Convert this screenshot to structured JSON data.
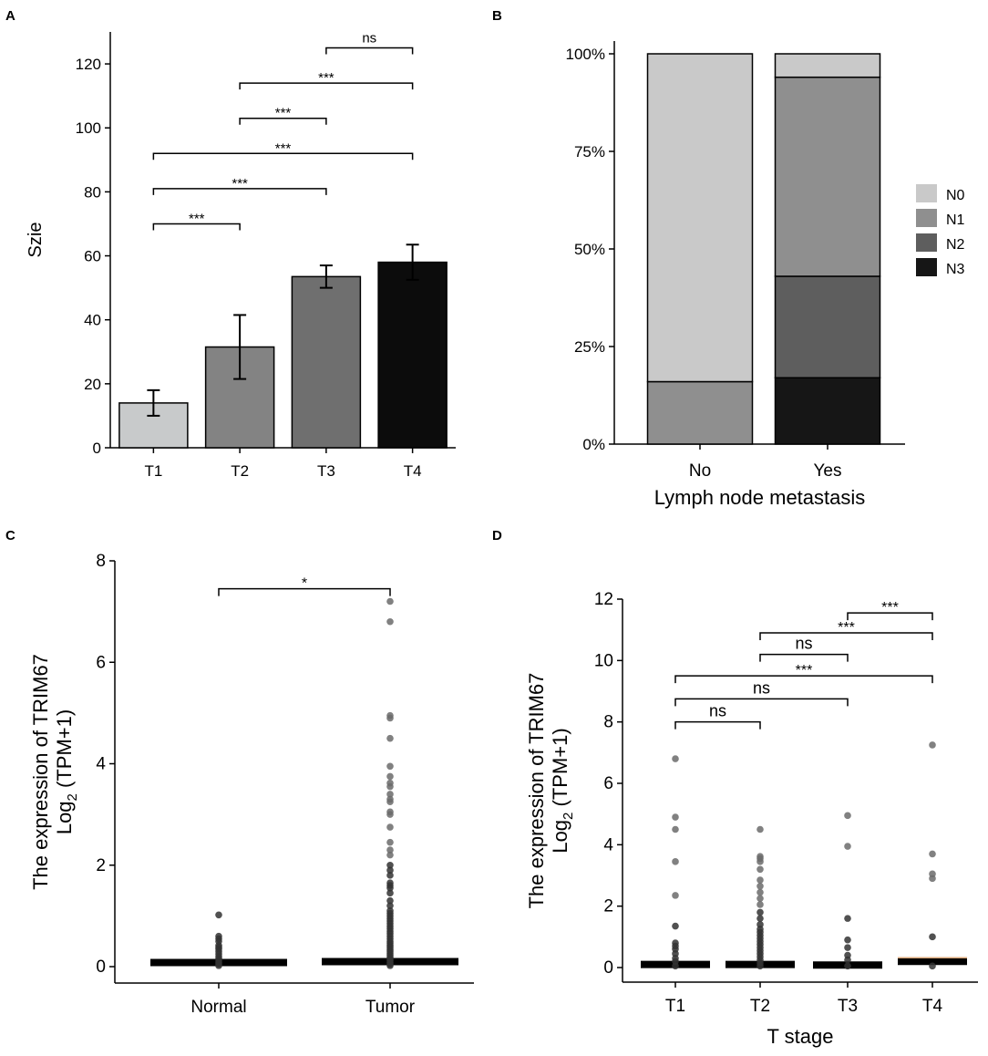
{
  "chart_data": [
    {
      "panel": "A",
      "type": "bar",
      "categories": [
        "T1",
        "T2",
        "T3",
        "T4"
      ],
      "values": [
        14,
        31.5,
        53.5,
        58
      ],
      "errors": [
        4,
        10,
        3.5,
        5.5
      ],
      "colors": [
        "#c8cacb",
        "#838383",
        "#6f6f6f",
        "#0c0c0c"
      ],
      "xlabel": "",
      "ylabel": "Szie",
      "ylim": [
        0,
        130
      ],
      "yticks": [
        0,
        20,
        40,
        60,
        80,
        100,
        120
      ],
      "comparisons": [
        {
          "from": "T1",
          "to": "T2",
          "label": "***",
          "y": 70
        },
        {
          "from": "T1",
          "to": "T3",
          "label": "***",
          "y": 81
        },
        {
          "from": "T1",
          "to": "T4",
          "label": "***",
          "y": 92
        },
        {
          "from": "T2",
          "to": "T3",
          "label": "***",
          "y": 103
        },
        {
          "from": "T2",
          "to": "T4",
          "label": "***",
          "y": 114
        },
        {
          "from": "T3",
          "to": "T4",
          "label": "ns",
          "y": 125
        }
      ]
    },
    {
      "panel": "B",
      "type": "bar",
      "stacked": true,
      "categories": [
        "No",
        "Yes"
      ],
      "xlabel": "Lymph node metastasis",
      "ylabel": "",
      "ylim": [
        0,
        100
      ],
      "ytick_labels": [
        "0%",
        "25%",
        "50%",
        "75%",
        "100%"
      ],
      "series": [
        {
          "name": "N3",
          "color": "#161616",
          "values": [
            0,
            17
          ]
        },
        {
          "name": "N2",
          "color": "#5e5e5e",
          "values": [
            0,
            26
          ]
        },
        {
          "name": "N1",
          "color": "#8f8f8f",
          "values": [
            16,
            51
          ]
        },
        {
          "name": "N0",
          "color": "#c9c9c9",
          "values": [
            84,
            6
          ]
        }
      ],
      "legend": [
        "N0",
        "N1",
        "N2",
        "N3"
      ],
      "legend_position": "right"
    },
    {
      "panel": "C",
      "type": "scatter",
      "categories": [
        "Normal",
        "Tumor"
      ],
      "xlabel": "",
      "ylabel": "The expression of TRIM67",
      "ylabel2": "Log",
      "ylabel2_sub": "2",
      "ylabel2_rest": " (TPM+1)",
      "ylim": [
        0,
        8
      ],
      "yticks": [
        0,
        2,
        4,
        6,
        8
      ],
      "medians": [
        0.08,
        0.1
      ],
      "points": [
        [
          0.02,
          0.05,
          0.08,
          0.12,
          0.16,
          0.2,
          0.25,
          0.3,
          0.35,
          0.38,
          0.42,
          0.5,
          0.55,
          0.6,
          1.02
        ],
        [
          0.02,
          0.05,
          0.08,
          0.12,
          0.15,
          0.18,
          0.22,
          0.26,
          0.3,
          0.34,
          0.38,
          0.42,
          0.46,
          0.5,
          0.55,
          0.6,
          0.65,
          0.7,
          0.75,
          0.8,
          0.85,
          0.9,
          0.95,
          1.0,
          1.05,
          1.1,
          1.2,
          1.3,
          1.45,
          1.55,
          1.6,
          1.65,
          1.8,
          1.9,
          2.0,
          2.2,
          2.3,
          2.45,
          2.75,
          3.0,
          3.05,
          3.25,
          3.3,
          3.4,
          3.55,
          3.62,
          3.75,
          3.95,
          4.5,
          4.9,
          4.95,
          6.8,
          7.2
        ]
      ],
      "comparisons": [
        {
          "from": "Normal",
          "to": "Tumor",
          "label": "*",
          "y": 7.45
        }
      ]
    },
    {
      "panel": "D",
      "type": "scatter",
      "categories": [
        "T1",
        "T2",
        "T3",
        "T4"
      ],
      "xlabel": "T stage",
      "ylabel": "The expression of TRIM67",
      "ylabel2": "Log",
      "ylabel2_sub": "2",
      "ylabel2_rest": " (TPM+1)",
      "ylim": [
        0,
        12
      ],
      "yticks": [
        0,
        2,
        4,
        6,
        8,
        10,
        12
      ],
      "medians": [
        0.1,
        0.1,
        0.08,
        0.2
      ],
      "points": [
        [
          0.05,
          0.2,
          0.3,
          0.45,
          0.6,
          0.7,
          0.8,
          1.35,
          2.35,
          3.45,
          4.5,
          4.9,
          6.8
        ],
        [
          0.05,
          0.15,
          0.25,
          0.35,
          0.45,
          0.55,
          0.65,
          0.75,
          0.85,
          0.95,
          1.05,
          1.15,
          1.25,
          1.4,
          1.6,
          1.8,
          2.05,
          2.25,
          2.45,
          2.65,
          2.85,
          3.2,
          3.45,
          3.55,
          3.62,
          4.5
        ],
        [
          0.05,
          0.25,
          0.4,
          0.65,
          0.9,
          1.6,
          3.95,
          4.95
        ],
        [
          0.05,
          1.0,
          2.9,
          3.05,
          3.7,
          7.25
        ]
      ],
      "comparisons": [
        {
          "from": "T1",
          "to": "T2",
          "label": "ns",
          "y": 8.0
        },
        {
          "from": "T1",
          "to": "T3",
          "label": "ns",
          "y": 8.75
        },
        {
          "from": "T1",
          "to": "T4",
          "label": "***",
          "y": 9.5
        },
        {
          "from": "T2",
          "to": "T3",
          "label": "ns",
          "y": 10.2
        },
        {
          "from": "T2",
          "to": "T4",
          "label": "***",
          "y": 10.9
        },
        {
          "from": "T3",
          "to": "T4",
          "label": "***",
          "y": 11.55
        }
      ]
    }
  ]
}
